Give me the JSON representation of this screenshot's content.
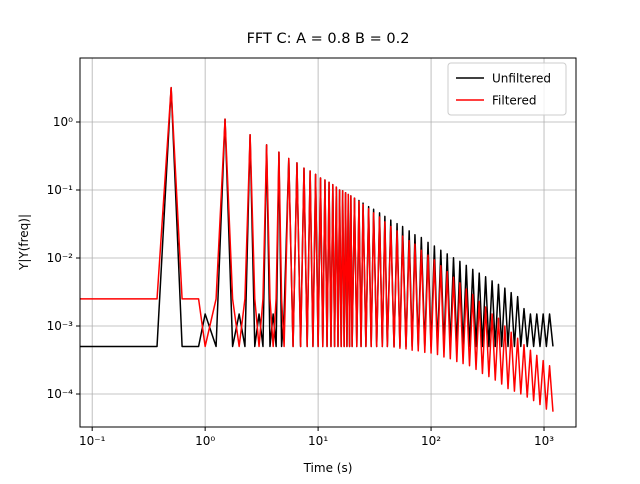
{
  "chart_data": {
    "type": "line",
    "title": "FFT C: A = 0.8 B = 0.2",
    "xlabel": "Time (s)",
    "ylabel": "Y|Y(freq)|",
    "xscale": "log",
    "yscale": "log",
    "grid": true,
    "legend": "upper right",
    "xlim": [
      0.078,
      1919
    ],
    "ylim": [
      3.27e-05,
      8.73
    ],
    "xticks": [
      {
        "value": 0.1,
        "label": "10⁻¹"
      },
      {
        "value": 1,
        "label": "10⁰"
      },
      {
        "value": 10,
        "label": "10¹"
      },
      {
        "value": 100,
        "label": "10²"
      },
      {
        "value": 1000,
        "label": "10³"
      }
    ],
    "yticks": [
      {
        "value": 0.0001,
        "label": "10⁻⁴"
      },
      {
        "value": 0.001,
        "label": "10⁻³"
      },
      {
        "value": 0.01,
        "label": "10⁻²"
      },
      {
        "value": 0.1,
        "label": "10⁻¹"
      },
      {
        "value": 1,
        "label": "10⁰"
      }
    ],
    "x": [
      0.0625,
      0.375,
      0.5,
      0.625,
      0.875,
      1,
      1.25,
      1.5,
      1.75,
      2,
      2.25,
      2.5,
      2.75,
      3,
      3.25,
      3.5,
      3.75,
      4,
      4.25,
      4.5,
      4.75,
      5,
      5.5,
      6,
      6.5,
      7,
      7.5,
      8,
      8.5,
      9,
      9.5,
      10,
      10.5,
      11,
      11.5,
      12,
      12.5,
      13,
      13.5,
      14,
      14.5,
      15,
      15.5,
      16,
      16.5,
      17,
      17.5,
      18,
      18.5,
      19,
      19.5,
      20,
      21,
      22,
      23,
      24,
      25,
      26.5,
      28,
      29.5,
      31,
      33,
      35,
      37,
      39,
      41,
      44,
      47,
      50,
      53,
      56,
      60,
      64,
      68,
      72,
      77,
      82,
      88,
      94,
      100,
      107,
      114,
      122,
      130,
      139,
      148,
      158,
      169,
      180,
      192,
      205,
      219,
      234,
      250,
      267,
      285,
      304,
      325,
      347,
      370,
      395,
      422,
      450,
      480,
      512,
      547,
      584,
      623,
      665,
      710,
      758,
      809,
      863,
      921,
      983,
      1049,
      1120,
      1200
    ],
    "series": [
      {
        "name": "Unfiltered",
        "color": "#000000",
        "values": [
          0.0005,
          0.0005,
          3.2,
          0.0005,
          0.0005,
          0.0015,
          0.0005,
          1.1,
          0.0005,
          0.0015,
          0.0005,
          0.65,
          0.0005,
          0.0015,
          0.0005,
          0.46,
          0.0005,
          0.0015,
          0.0005,
          0.36,
          0.0005,
          0.0015,
          0.29,
          0.0005,
          0.25,
          0.0005,
          0.21,
          0.0005,
          0.19,
          0.0005,
          0.17,
          0.0005,
          0.15,
          0.0005,
          0.14,
          0.0005,
          0.13,
          0.0005,
          0.12,
          0.0005,
          0.11,
          0.0005,
          0.1,
          0.0005,
          0.097,
          0.0005,
          0.091,
          0.0005,
          0.086,
          0.0005,
          0.082,
          0.0005,
          0.076,
          0.0005,
          0.07,
          0.0005,
          0.064,
          0.0005,
          0.057,
          0.0005,
          0.052,
          0.0005,
          0.046,
          0.0005,
          0.041,
          0.0005,
          0.036,
          0.0005,
          0.032,
          0.0005,
          0.029,
          0.0005,
          0.025,
          0.0005,
          0.022,
          0.0005,
          0.02,
          0.0005,
          0.017,
          0.0005,
          0.015,
          0.0005,
          0.013,
          0.0005,
          0.0115,
          0.0005,
          0.0101,
          0.0005,
          0.0089,
          0.0005,
          0.0078,
          0.0005,
          0.0068,
          0.0005,
          0.006,
          0.0005,
          0.0053,
          0.0005,
          0.0046,
          0.0005,
          0.0041,
          0.0005,
          0.0036,
          0.0005,
          0.0031,
          0.0005,
          0.0027,
          0.0005,
          0.0018,
          0.0005,
          0.0015,
          0.0005,
          0.0015,
          0.0005,
          0.0015,
          0.0005,
          0.0015,
          0.0005
        ]
      },
      {
        "name": "Filtered",
        "color": "#ff0000",
        "values": [
          0.0025,
          0.0025,
          3.2,
          0.0025,
          0.0025,
          0.0005,
          0.0025,
          1.1,
          0.0025,
          0.0005,
          0.0025,
          0.65,
          0.0025,
          0.0005,
          0.0025,
          0.46,
          0.0025,
          0.0005,
          0.0025,
          0.36,
          0.0025,
          0.0005,
          0.29,
          0.0005,
          0.25,
          0.0005,
          0.21,
          0.0005,
          0.19,
          0.0005,
          0.17,
          0.0005,
          0.15,
          0.0005,
          0.14,
          0.0005,
          0.13,
          0.0005,
          0.12,
          0.0005,
          0.11,
          0.0005,
          0.1,
          0.0005,
          0.097,
          0.0005,
          0.091,
          0.0005,
          0.086,
          0.0005,
          0.082,
          0.0005,
          0.076,
          0.0005,
          0.068,
          0.0005,
          0.061,
          0.0005,
          0.053,
          0.0005,
          0.046,
          0.0005,
          0.04,
          0.0005,
          0.034,
          0.0005,
          0.029,
          0.00049,
          0.025,
          0.00047,
          0.021,
          0.00046,
          0.018,
          0.00044,
          0.016,
          0.00043,
          0.013,
          0.00041,
          0.011,
          0.0004,
          0.0094,
          0.00038,
          0.0077,
          0.00035,
          0.0063,
          0.00033,
          0.0052,
          0.0003,
          0.0043,
          0.00028,
          0.0035,
          0.00026,
          0.0029,
          0.00023,
          0.0023,
          0.0002,
          0.0019,
          0.00018,
          0.0015,
          0.00016,
          0.0013,
          0.00014,
          0.001,
          0.00012,
          0.00081,
          0.00011,
          0.00066,
          0.0001,
          0.00053,
          9e-05,
          0.00044,
          8e-05,
          0.00037,
          7e-05,
          0.00031,
          6e-05,
          0.00026,
          5.5e-05
        ]
      }
    ]
  }
}
